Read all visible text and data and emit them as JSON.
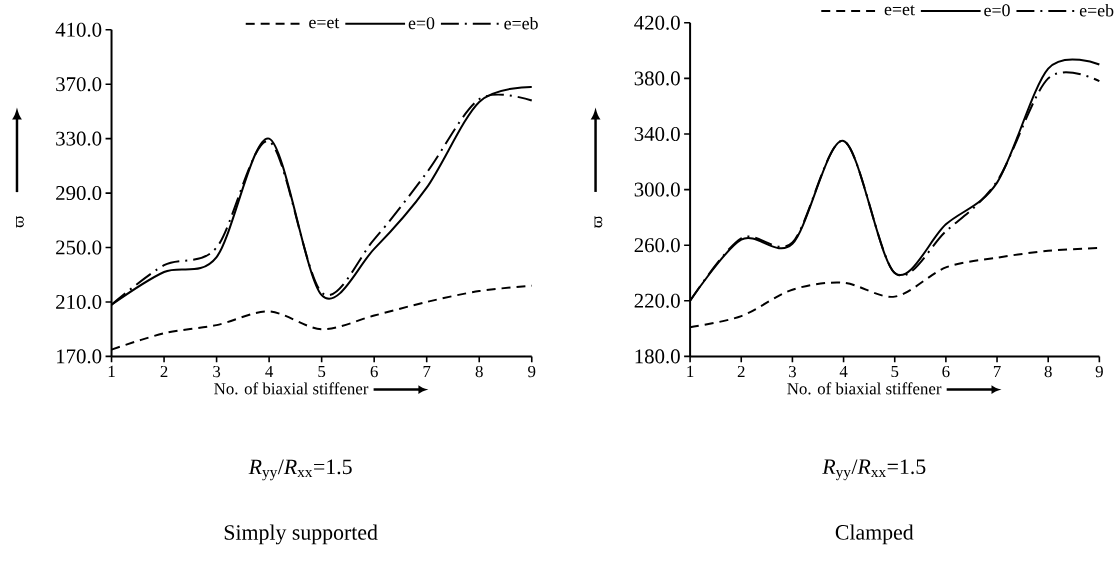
{
  "chart_data": [
    {
      "type": "line",
      "xlabel": "No. of biaxial stiffener",
      "ylabel": "ϖ",
      "x": [
        1,
        2,
        3,
        4,
        5,
        6,
        7,
        8,
        9
      ],
      "xlim": [
        1,
        9
      ],
      "xticks": [
        1,
        2,
        3,
        4,
        5,
        6,
        7,
        8,
        9
      ],
      "ylim": [
        170,
        410
      ],
      "yticks": [
        {
          "value": 170,
          "label": "170.0"
        },
        {
          "value": 210,
          "label": "210.0"
        },
        {
          "value": 250,
          "label": "250.0"
        },
        {
          "value": 290,
          "label": "290.0"
        },
        {
          "value": 330,
          "label": "330.0"
        },
        {
          "value": 370,
          "label": "370.0"
        },
        {
          "value": 410,
          "label": "410.0"
        }
      ],
      "legend": "top right",
      "marker": "none",
      "grid": false,
      "series": [
        {
          "name": "e=et",
          "color": "#000000",
          "line_style": "dashed",
          "values": [
            175,
            187,
            193,
            203,
            190,
            200,
            210,
            218,
            222
          ]
        },
        {
          "name": "e=0",
          "color": "#000000",
          "line_style": "solid",
          "values": [
            208,
            232,
            243,
            330,
            215,
            249,
            294,
            357,
            368
          ]
        },
        {
          "name": "e=eb",
          "color": "#000000",
          "line_style": "dashdot",
          "values": [
            208,
            237,
            250,
            328,
            217,
            256,
            305,
            359,
            358
          ]
        }
      ],
      "annotations": [
        "*R*$_{yy}$/*R*$_{xx}$=1.5",
        "Simply supported"
      ]
    },
    {
      "type": "line",
      "xlabel": "No. of biaxial stiffener",
      "ylabel": "ϖ",
      "x": [
        1,
        2,
        3,
        4,
        5,
        6,
        7,
        8,
        9
      ],
      "xlim": [
        1,
        9
      ],
      "xticks": [
        1,
        2,
        3,
        4,
        5,
        6,
        7,
        8,
        9
      ],
      "ylim": [
        180,
        420
      ],
      "yticks": [
        {
          "value": 180,
          "label": "180.0"
        },
        {
          "value": 220,
          "label": "220.0"
        },
        {
          "value": 260,
          "label": "260.0"
        },
        {
          "value": 300,
          "label": "300.0"
        },
        {
          "value": 340,
          "label": "340.0"
        },
        {
          "value": 380,
          "label": "380.0"
        },
        {
          "value": 420,
          "label": "420.0"
        }
      ],
      "legend": "top right",
      "marker": "none",
      "grid": false,
      "series": [
        {
          "name": "e=et",
          "color": "#000000",
          "line_style": "dashed",
          "values": [
            201,
            209,
            228,
            233,
            223,
            244,
            251,
            256,
            258
          ]
        },
        {
          "name": "e=0",
          "color": "#000000",
          "line_style": "solid",
          "values": [
            220,
            264,
            261,
            335,
            240,
            275,
            305,
            387,
            390
          ]
        },
        {
          "name": "e=eb",
          "color": "#000000",
          "line_style": "dashdot",
          "values": [
            220,
            265,
            262,
            335,
            240,
            270,
            306,
            380,
            378
          ]
        }
      ],
      "annotations": [
        "*R*$_{yy}$/*R*$_{xx}$=1.5",
        "Clamped"
      ]
    }
  ]
}
